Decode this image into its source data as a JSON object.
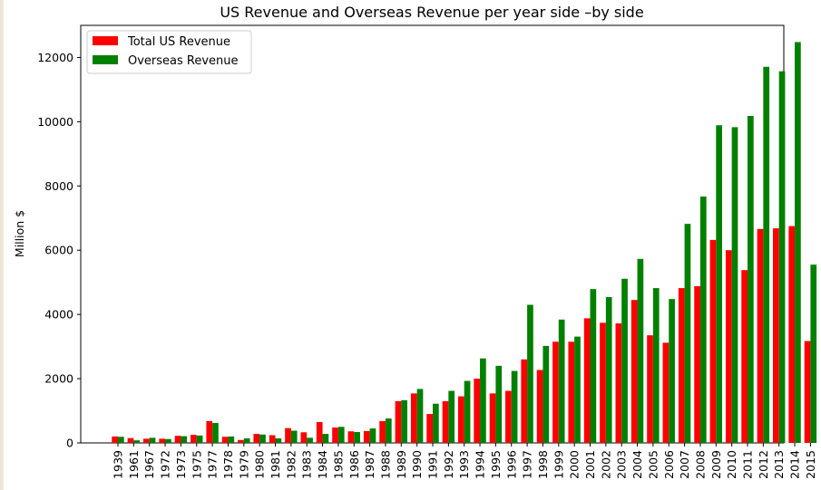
{
  "chart_data": {
    "type": "bar",
    "title": "US Revenue and Overseas Revenue per year side –by side",
    "xlabel": "",
    "ylabel": "Million $",
    "ylim": [
      0,
      13000
    ],
    "yticks": [
      0,
      2000,
      4000,
      6000,
      8000,
      10000,
      12000
    ],
    "legend_position": "top-left",
    "grid": false,
    "categories": [
      "1939",
      "1961",
      "1967",
      "1972",
      "1973",
      "1975",
      "1977",
      "1978",
      "1979",
      "1980",
      "1981",
      "1982",
      "1983",
      "1984",
      "1985",
      "1986",
      "1987",
      "1988",
      "1989",
      "1990",
      "1991",
      "1992",
      "1993",
      "1994",
      "1995",
      "1996",
      "1997",
      "1998",
      "1999",
      "2000",
      "2001",
      "2002",
      "2003",
      "2004",
      "2005",
      "2006",
      "2007",
      "2008",
      "2009",
      "2010",
      "2011",
      "2012",
      "2013",
      "2014",
      "2015"
    ],
    "series": [
      {
        "name": "Total US Revenue",
        "color": "#ff0000",
        "values": [
          200,
          150,
          130,
          130,
          220,
          250,
          680,
          190,
          90,
          280,
          240,
          460,
          330,
          650,
          480,
          360,
          370,
          680,
          1300,
          1540,
          900,
          1300,
          1450,
          2000,
          1540,
          1620,
          2600,
          2270,
          3150,
          3150,
          3880,
          3740,
          3720,
          4450,
          3350,
          3120,
          4820,
          4880,
          6320,
          6000,
          5380,
          6660,
          6680,
          6750,
          3170
        ]
      },
      {
        "name": "Overseas Revenue",
        "color": "#008000",
        "values": [
          190,
          80,
          160,
          120,
          210,
          230,
          620,
          200,
          140,
          260,
          140,
          380,
          160,
          280,
          500,
          340,
          450,
          760,
          1330,
          1680,
          1220,
          1620,
          1930,
          2630,
          2400,
          2240,
          4300,
          3020,
          3840,
          3310,
          4790,
          4540,
          5110,
          5730,
          4820,
          4480,
          6820,
          7670,
          9890,
          9830,
          10180,
          11710,
          11570,
          12480,
          5550
        ]
      }
    ]
  }
}
